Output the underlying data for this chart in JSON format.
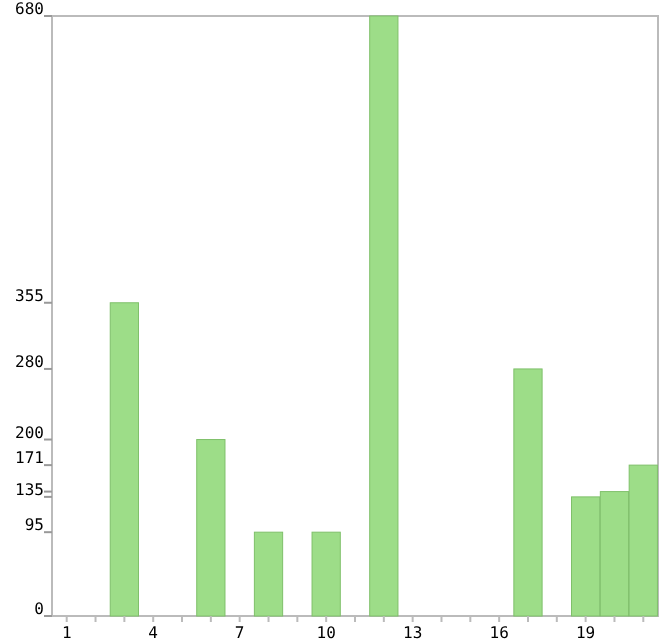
{
  "chart_data": {
    "type": "bar",
    "categories": [
      "1",
      null,
      null,
      "4",
      null,
      null,
      "7",
      null,
      null,
      "10",
      null,
      null,
      "13",
      null,
      null,
      "16",
      null,
      null,
      "19",
      null,
      null
    ],
    "values": [
      0,
      0,
      355,
      0,
      0,
      200,
      0,
      95,
      0,
      95,
      0,
      680,
      0,
      0,
      0,
      0,
      280,
      0,
      135,
      141,
      171
    ],
    "color": "#9ddd88",
    "ylim": [
      0,
      680
    ],
    "yticks": [
      0,
      95,
      135,
      {
        "value": 141,
        "label": null
      },
      171,
      200,
      280,
      355,
      680
    ],
    "grid": false
  }
}
